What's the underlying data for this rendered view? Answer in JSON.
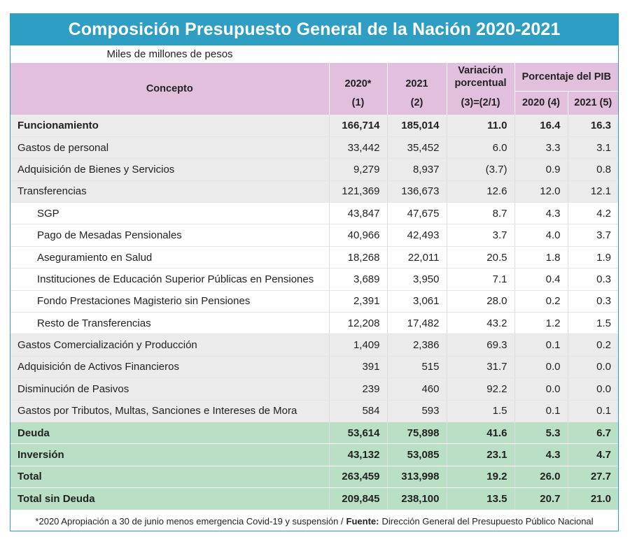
{
  "title": "Composición Presupuesto General de la Nación 2020-2021",
  "subtitle": "Miles de millones de pesos",
  "header": {
    "concepto": "Concepto",
    "y2020": "2020*",
    "y2020_sub": "(1)",
    "y2021": "2021",
    "y2021_sub": "(2)",
    "variacion": "Variación porcentual",
    "variacion_sub": "(3)=(2/1)",
    "pib": "Porcentaje del PIB",
    "pib2020": "2020 (4)",
    "pib2021": "2021 (5)"
  },
  "rows": [
    {
      "concepto": "Funcionamiento",
      "v2020": "166,714",
      "v2021": "185,014",
      "var": "11.0",
      "pib2020": "16.4",
      "pib2021": "16.3",
      "style": "gray bold",
      "indent": false
    },
    {
      "concepto": "Gastos de personal",
      "v2020": "33,442",
      "v2021": "35,452",
      "var": "6.0",
      "pib2020": "3.3",
      "pib2021": "3.1",
      "style": "gray",
      "indent": false
    },
    {
      "concepto": "Adquisición de Bienes y Servicios",
      "v2020": "9,279",
      "v2021": "8,937",
      "var": "(3.7)",
      "pib2020": "0.9",
      "pib2021": "0.8",
      "style": "gray",
      "indent": false
    },
    {
      "concepto": "Transferencias",
      "v2020": "121,369",
      "v2021": "136,673",
      "var": "12.6",
      "pib2020": "12.0",
      "pib2021": "12.1",
      "style": "gray",
      "indent": false
    },
    {
      "concepto": "SGP",
      "v2020": "43,847",
      "v2021": "47,675",
      "var": "8.7",
      "pib2020": "4.3",
      "pib2021": "4.2",
      "style": "white",
      "indent": true
    },
    {
      "concepto": "Pago de Mesadas Pensionales",
      "v2020": "40,966",
      "v2021": "42,493",
      "var": "3.7",
      "pib2020": "4.0",
      "pib2021": "3.7",
      "style": "white",
      "indent": true
    },
    {
      "concepto": "Aseguramiento en Salud",
      "v2020": "18,268",
      "v2021": "22,011",
      "var": "20.5",
      "pib2020": "1.8",
      "pib2021": "1.9",
      "style": "white",
      "indent": true
    },
    {
      "concepto": "Instituciones de Educación Superior Públicas en Pensiones",
      "v2020": "3,689",
      "v2021": "3,950",
      "var": "7.1",
      "pib2020": "0.4",
      "pib2021": "0.3",
      "style": "white",
      "indent": true
    },
    {
      "concepto": "Fondo Prestaciones Magisterio sin Pensiones",
      "v2020": "2,391",
      "v2021": "3,061",
      "var": "28.0",
      "pib2020": "0.2",
      "pib2021": "0.3",
      "style": "white",
      "indent": true
    },
    {
      "concepto": "Resto de Transferencias",
      "v2020": "12,208",
      "v2021": "17,482",
      "var": "43.2",
      "pib2020": "1.2",
      "pib2021": "1.5",
      "style": "white",
      "indent": true
    },
    {
      "concepto": "Gastos Comercialización y Producción",
      "v2020": "1,409",
      "v2021": "2,386",
      "var": "69.3",
      "pib2020": "0.1",
      "pib2021": "0.2",
      "style": "gray",
      "indent": false
    },
    {
      "concepto": "Adquisición de Activos Financieros",
      "v2020": "391",
      "v2021": "515",
      "var": "31.7",
      "pib2020": "0.0",
      "pib2021": "0.0",
      "style": "gray",
      "indent": false
    },
    {
      "concepto": "Disminución de Pasivos",
      "v2020": "239",
      "v2021": "460",
      "var": "92.2",
      "pib2020": "0.0",
      "pib2021": "0.0",
      "style": "gray",
      "indent": false
    },
    {
      "concepto": "Gastos por Tributos, Multas, Sanciones e Intereses de Mora",
      "v2020": "584",
      "v2021": "593",
      "var": "1.5",
      "pib2020": "0.1",
      "pib2021": "0.1",
      "style": "gray",
      "indent": false
    },
    {
      "concepto": "Deuda",
      "v2020": "53,614",
      "v2021": "75,898",
      "var": "41.6",
      "pib2020": "5.3",
      "pib2021": "6.7",
      "style": "green bold",
      "indent": false
    },
    {
      "concepto": "Inversión",
      "v2020": "43,132",
      "v2021": "53,085",
      "var": "23.1",
      "pib2020": "4.3",
      "pib2021": "4.7",
      "style": "green bold",
      "indent": false
    },
    {
      "concepto": "Total",
      "v2020": "263,459",
      "v2021": "313,998",
      "var": "19.2",
      "pib2020": "26.0",
      "pib2021": "27.7",
      "style": "green bold",
      "indent": false
    },
    {
      "concepto": "Total sin Deuda",
      "v2020": "209,845",
      "v2021": "238,100",
      "var": "13.5",
      "pib2020": "20.7",
      "pib2021": "21.0",
      "style": "green bold",
      "indent": false
    }
  ],
  "footnote": {
    "note": "*2020 Apropiación a 30 de junio menos emergencia Covid-19 y suspensión /",
    "source_label": "Fuente:",
    "source": "Dirección General del Presupuesto Público Nacional"
  },
  "colors": {
    "title_bg": "#2f9ec3",
    "header_bg": "#e2c0dd",
    "gray_row": "#ebebeb",
    "green_row": "#b9e0c5"
  }
}
